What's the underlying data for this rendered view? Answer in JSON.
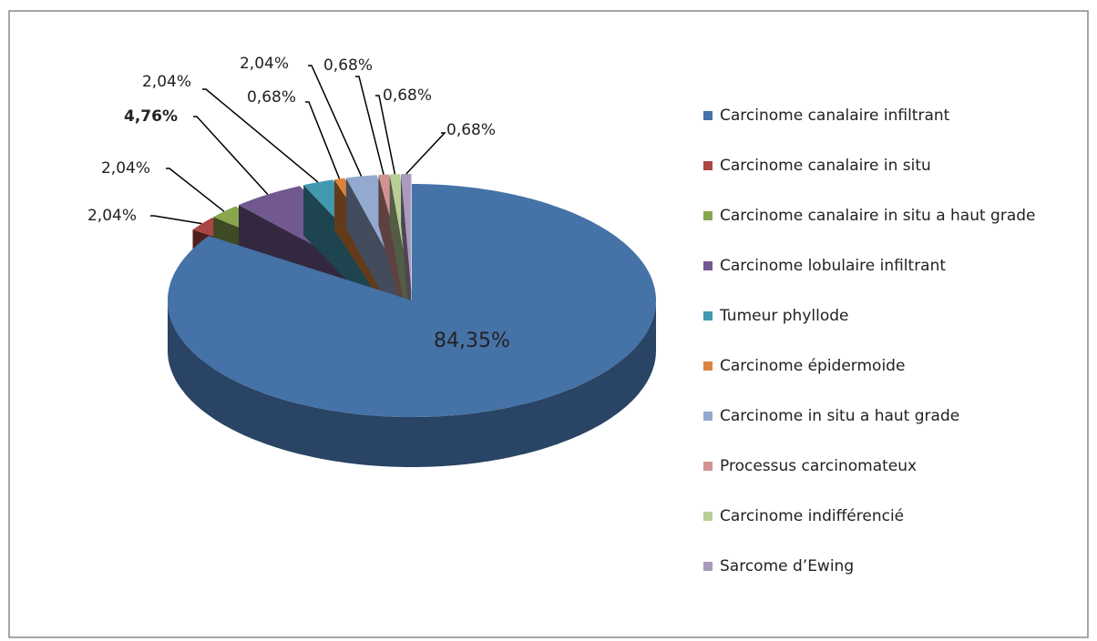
{
  "chart_data": {
    "type": "pie3d",
    "categories": [
      "Carcinome canalaire infiltrant",
      "Carcinome canalaire in situ",
      "Carcinome canalaire in situ a haut grade",
      "Carcinome lobulaire infiltrant",
      "Tumeur phyllode",
      "Carcinome épidermoide",
      "Carcinome in situ a haut grade",
      "Processus carcinomateux",
      "Carcinome indifférencié",
      "Sarcome d’Ewing"
    ],
    "values": [
      84.35,
      2.04,
      2.04,
      4.76,
      2.04,
      0.68,
      2.04,
      0.68,
      0.68,
      0.68
    ],
    "value_labels": [
      "84,35%",
      "2,04%",
      "2,04%",
      "4,76%",
      "2,04%",
      "0,68%",
      "2,04%",
      "0,68%",
      "0,68%",
      "0,68%"
    ],
    "colors": [
      "#4572a7",
      "#aa4643",
      "#89a54e",
      "#71588f",
      "#4198af",
      "#db843d",
      "#93a9cf",
      "#d19392",
      "#b9cd96",
      "#a99bbd"
    ],
    "legend": "right"
  }
}
